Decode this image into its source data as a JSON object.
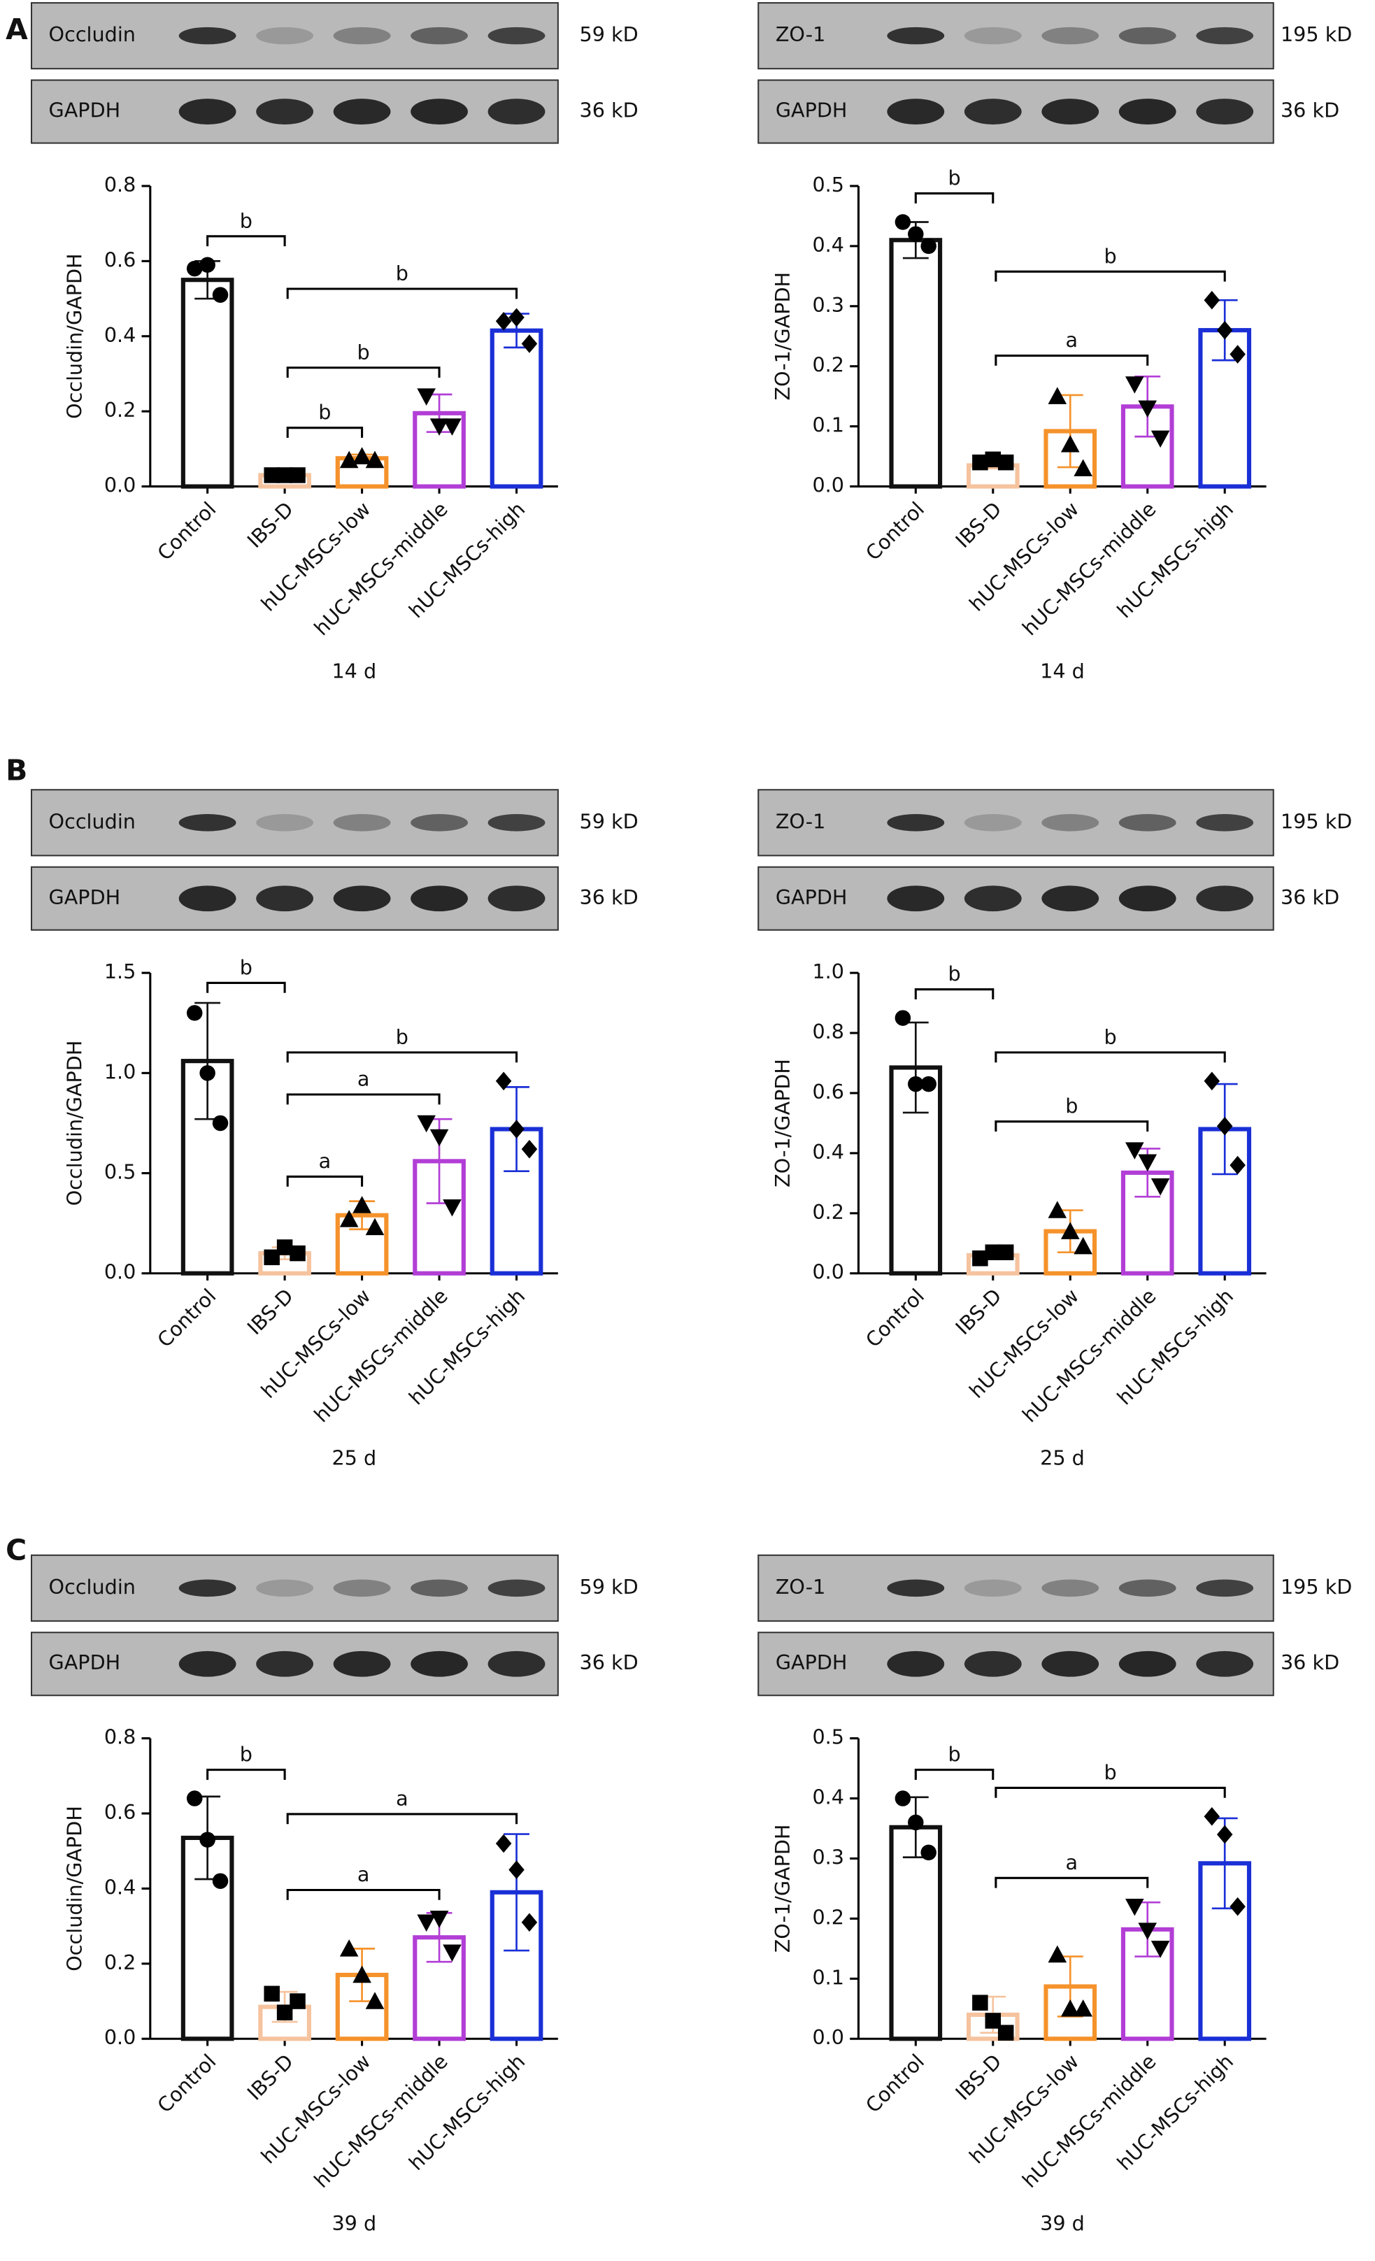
{
  "panel_labels": [
    "A",
    "B",
    "C"
  ],
  "chart_data": [
    {
      "type": "bar",
      "ylabel": "Occludin/GAPDH",
      "xlabel": "14 d",
      "blot": {
        "labels": [
          "Occludin",
          "GAPDH"
        ],
        "sizes": [
          "59 kD",
          "36 kD"
        ]
      },
      "categories": [
        "Control",
        "IBS-D",
        "hUC-MSCs-low",
        "hUC-MSCs-middle",
        "hUC-MSCs-high"
      ],
      "values": [
        0.55,
        0.03,
        0.075,
        0.195,
        0.415
      ],
      "errors": [
        0.05,
        0.005,
        0.01,
        0.05,
        0.045
      ],
      "points": [
        [
          0.58,
          0.59,
          0.51
        ],
        [
          0.03,
          0.03,
          0.03
        ],
        [
          0.07,
          0.08,
          0.07
        ],
        [
          0.24,
          0.16,
          0.16
        ],
        [
          0.44,
          0.45,
          0.38
        ]
      ],
      "colors": [
        "#111111",
        "#f5c39e",
        "#f5922b",
        "#b23ed6",
        "#1a2fd6"
      ],
      "markers": [
        "circle",
        "square",
        "triangle-up",
        "triangle-down",
        "diamond"
      ],
      "ylim": [
        0,
        0.8
      ],
      "yticks": [
        {
          "value": 0,
          "label": "0.0"
        },
        0.2,
        0.4,
        0.6,
        0.8
      ],
      "annotations": [
        {
          "from": 0,
          "to": 1,
          "text": "b"
        },
        {
          "from": 1,
          "to": 4,
          "text": "b"
        },
        {
          "from": 1,
          "to": 3,
          "text": "b"
        },
        {
          "from": 1,
          "to": 2,
          "text": "b"
        }
      ]
    },
    {
      "type": "bar",
      "ylabel": "ZO-1/GAPDH",
      "xlabel": "14 d",
      "blot": {
        "labels": [
          "ZO-1",
          "GAPDH"
        ],
        "sizes": [
          "195 kD",
          "36 kD"
        ]
      },
      "categories": [
        "Control",
        "IBS-D",
        "hUC-MSCs-low",
        "hUC-MSCs-middle",
        "hUC-MSCs-high"
      ],
      "values": [
        0.41,
        0.035,
        0.092,
        0.133,
        0.26
      ],
      "errors": [
        0.03,
        0.005,
        0.06,
        0.05,
        0.05
      ],
      "points": [
        [
          0.44,
          0.42,
          0.4
        ],
        [
          0.04,
          0.045,
          0.04
        ],
        [
          0.15,
          0.07,
          0.03
        ],
        [
          0.17,
          0.13,
          0.08
        ],
        [
          0.31,
          0.26,
          0.22
        ]
      ],
      "colors": [
        "#111111",
        "#f5c39e",
        "#f5922b",
        "#b23ed6",
        "#1a2fd6"
      ],
      "markers": [
        "circle",
        "square",
        "triangle-up",
        "triangle-down",
        "diamond"
      ],
      "ylim": [
        0,
        0.5
      ],
      "yticks": [
        {
          "value": 0,
          "label": "0.0"
        },
        0.1,
        0.2,
        0.3,
        0.4,
        0.5
      ],
      "annotations": [
        {
          "from": 0,
          "to": 1,
          "text": "b"
        },
        {
          "from": 1,
          "to": 4,
          "text": "b"
        },
        {
          "from": 1,
          "to": 3,
          "text": "a"
        }
      ]
    },
    {
      "type": "bar",
      "ylabel": "Occludin/GAPDH",
      "xlabel": "25 d",
      "blot": {
        "labels": [
          "Occludin",
          "GAPDH"
        ],
        "sizes": [
          "59 kD",
          "36 kD"
        ]
      },
      "categories": [
        "Control",
        "IBS-D",
        "hUC-MSCs-low",
        "hUC-MSCs-middle",
        "hUC-MSCs-high"
      ],
      "values": [
        1.06,
        0.1,
        0.29,
        0.56,
        0.72
      ],
      "errors": [
        0.29,
        0.03,
        0.07,
        0.21,
        0.21
      ],
      "points": [
        [
          1.3,
          1.0,
          0.75
        ],
        [
          0.08,
          0.13,
          0.1
        ],
        [
          0.27,
          0.34,
          0.23
        ],
        [
          0.75,
          0.68,
          0.33
        ],
        [
          0.96,
          0.72,
          0.62
        ]
      ],
      "colors": [
        "#111111",
        "#f5c39e",
        "#f5922b",
        "#b23ed6",
        "#1a2fd6"
      ],
      "markers": [
        "circle",
        "square",
        "triangle-up",
        "triangle-down",
        "diamond"
      ],
      "ylim": [
        0,
        1.5
      ],
      "yticks": [
        {
          "value": 0,
          "label": "0.0"
        },
        0.5,
        {
          "value": 1,
          "label": "1.0"
        },
        1.5
      ],
      "annotations": [
        {
          "from": 0,
          "to": 1,
          "text": "b"
        },
        {
          "from": 1,
          "to": 4,
          "text": "b"
        },
        {
          "from": 1,
          "to": 3,
          "text": "a"
        },
        {
          "from": 1,
          "to": 2,
          "text": "a"
        }
      ]
    },
    {
      "type": "bar",
      "ylabel": "ZO-1/GAPDH",
      "xlabel": "25 d",
      "blot": {
        "labels": [
          "ZO-1",
          "GAPDH"
        ],
        "sizes": [
          "195 kD",
          "36 kD"
        ]
      },
      "categories": [
        "Control",
        "IBS-D",
        "hUC-MSCs-low",
        "hUC-MSCs-middle",
        "hUC-MSCs-high"
      ],
      "values": [
        0.685,
        0.06,
        0.14,
        0.335,
        0.48
      ],
      "errors": [
        0.15,
        0.01,
        0.07,
        0.08,
        0.15
      ],
      "points": [
        [
          0.85,
          0.63,
          0.63
        ],
        [
          0.05,
          0.07,
          0.07
        ],
        [
          0.21,
          0.14,
          0.09
        ],
        [
          0.41,
          0.37,
          0.29
        ],
        [
          0.64,
          0.49,
          0.36
        ]
      ],
      "colors": [
        "#111111",
        "#f5c39e",
        "#f5922b",
        "#b23ed6",
        "#1a2fd6"
      ],
      "markers": [
        "circle",
        "square",
        "triangle-up",
        "triangle-down",
        "diamond"
      ],
      "ylim": [
        0,
        1
      ],
      "yticks": [
        {
          "value": 0,
          "label": "0.0"
        },
        0.2,
        0.4,
        0.6,
        0.8,
        {
          "value": 1,
          "label": "1.0"
        }
      ],
      "annotations": [
        {
          "from": 0,
          "to": 1,
          "text": "b"
        },
        {
          "from": 1,
          "to": 4,
          "text": "b"
        },
        {
          "from": 1,
          "to": 3,
          "text": "b"
        }
      ]
    },
    {
      "type": "bar",
      "ylabel": "Occludin/GAPDH",
      "xlabel": "39 d",
      "blot": {
        "labels": [
          "Occludin",
          "GAPDH"
        ],
        "sizes": [
          "59 kD",
          "36 kD"
        ]
      },
      "categories": [
        "Control",
        "IBS-D",
        "hUC-MSCs-low",
        "hUC-MSCs-middle",
        "hUC-MSCs-high"
      ],
      "values": [
        0.535,
        0.085,
        0.17,
        0.27,
        0.39
      ],
      "errors": [
        0.11,
        0.04,
        0.07,
        0.065,
        0.155
      ],
      "points": [
        [
          0.64,
          0.53,
          0.42
        ],
        [
          0.12,
          0.07,
          0.1
        ],
        [
          0.24,
          0.17,
          0.1
        ],
        [
          0.31,
          0.32,
          0.23
        ],
        [
          0.52,
          0.45,
          0.31
        ]
      ],
      "colors": [
        "#111111",
        "#f5c39e",
        "#f5922b",
        "#b23ed6",
        "#1a2fd6"
      ],
      "markers": [
        "circle",
        "square",
        "triangle-up",
        "triangle-down",
        "diamond"
      ],
      "ylim": [
        0,
        0.8
      ],
      "yticks": [
        {
          "value": 0,
          "label": "0.0"
        },
        0.2,
        0.4,
        0.6,
        0.8
      ],
      "annotations": [
        {
          "from": 0,
          "to": 1,
          "text": "b"
        },
        {
          "from": 1,
          "to": 4,
          "text": "a"
        },
        {
          "from": 1,
          "to": 3,
          "text": "a"
        }
      ]
    },
    {
      "type": "bar",
      "ylabel": "ZO-1/GAPDH",
      "xlabel": "39 d",
      "blot": {
        "labels": [
          "ZO-1",
          "GAPDH"
        ],
        "sizes": [
          "195 kD",
          "36 kD"
        ]
      },
      "categories": [
        "Control",
        "IBS-D",
        "hUC-MSCs-low",
        "hUC-MSCs-middle",
        "hUC-MSCs-high"
      ],
      "values": [
        0.352,
        0.04,
        0.087,
        0.182,
        0.292
      ],
      "errors": [
        0.05,
        0.03,
        0.05,
        0.045,
        0.075
      ],
      "points": [
        [
          0.4,
          0.36,
          0.31
        ],
        [
          0.06,
          0.03,
          0.01
        ],
        [
          0.14,
          0.05,
          0.05
        ],
        [
          0.22,
          0.18,
          0.15
        ],
        [
          0.37,
          0.34,
          0.22
        ]
      ],
      "colors": [
        "#111111",
        "#f5c39e",
        "#f5922b",
        "#b23ed6",
        "#1a2fd6"
      ],
      "markers": [
        "circle",
        "square",
        "triangle-up",
        "triangle-down",
        "diamond"
      ],
      "ylim": [
        0,
        0.5
      ],
      "yticks": [
        {
          "value": 0,
          "label": "0.0"
        },
        0.1,
        0.2,
        0.3,
        0.4,
        0.5
      ],
      "annotations": [
        {
          "from": 0,
          "to": 1,
          "text": "b"
        },
        {
          "from": 1,
          "to": 4,
          "text": "b"
        },
        {
          "from": 1,
          "to": 3,
          "text": "a"
        }
      ]
    }
  ]
}
